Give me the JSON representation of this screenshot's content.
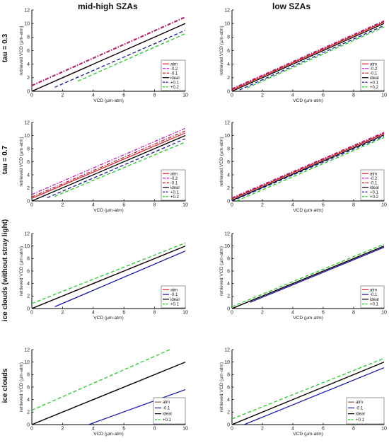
{
  "headers": {
    "left": "mid-high SZAs",
    "right": "low SZAs"
  },
  "row_labels": [
    "tau = 0.3",
    "tau = 0.7",
    "ice clouds (without stray light)",
    "ice clouds"
  ],
  "chart_data": [
    {
      "type": "line",
      "row": 0,
      "col": 0,
      "xlabel": "VCD (μm-atm)",
      "ylabel": "retrieved VCD (μm-atm)",
      "xlim": [
        0,
        10
      ],
      "ylim": [
        0,
        12
      ],
      "xticks": [
        0,
        2,
        4,
        6,
        8,
        10
      ],
      "yticks": [
        0,
        2,
        4,
        6,
        8,
        10,
        12
      ],
      "legend": "bottom-right",
      "series": [
        {
          "name": "atm",
          "color": "#e0232b",
          "dash": "solid",
          "x": [
            0,
            10
          ],
          "y": [
            0,
            10
          ]
        },
        {
          "name": "-0.2",
          "color": "#c020c0",
          "dash": "dashdot",
          "x": [
            0,
            10
          ],
          "y": [
            0.9,
            11.0
          ]
        },
        {
          "name": "-0.1",
          "color": "#b3202a",
          "dash": "dashdot",
          "x": [
            0,
            10
          ],
          "y": [
            0.8,
            10.9
          ]
        },
        {
          "name": "ideal",
          "color": "#000000",
          "dash": "solid",
          "x": [
            0,
            10
          ],
          "y": [
            0,
            10
          ]
        },
        {
          "name": "+0.1",
          "color": "#1a1aa0",
          "dash": "dashed",
          "x": [
            1.5,
            10
          ],
          "y": [
            0.6,
            9.0
          ]
        },
        {
          "name": "+0.2",
          "color": "#22cc22",
          "dash": "dashed",
          "x": [
            3.0,
            10
          ],
          "y": [
            1.5,
            8.5
          ]
        }
      ]
    },
    {
      "type": "line",
      "row": 0,
      "col": 1,
      "xlabel": "VCD (μm-atm)",
      "ylabel": "retrieved VCD (μm-atm)",
      "xlim": [
        0,
        10
      ],
      "ylim": [
        0,
        12
      ],
      "xticks": [
        0,
        2,
        4,
        6,
        8,
        10
      ],
      "yticks": [
        0,
        2,
        4,
        6,
        8,
        10,
        12
      ],
      "legend": "bottom-right",
      "series": [
        {
          "name": "atm",
          "color": "#e0232b",
          "dash": "solid",
          "x": [
            0,
            10
          ],
          "y": [
            0.2,
            10.2
          ]
        },
        {
          "name": "-0.2",
          "color": "#c020c0",
          "dash": "dashdot",
          "x": [
            0,
            10
          ],
          "y": [
            0.4,
            10.4
          ]
        },
        {
          "name": "-0.1",
          "color": "#b3202a",
          "dash": "dashdot",
          "x": [
            0,
            10
          ],
          "y": [
            0.3,
            10.3
          ]
        },
        {
          "name": "ideal",
          "color": "#000000",
          "dash": "solid",
          "x": [
            0,
            10
          ],
          "y": [
            0,
            10
          ]
        },
        {
          "name": "+0.1",
          "color": "#1a1aa0",
          "dash": "dashed",
          "x": [
            0.5,
            10
          ],
          "y": [
            0.2,
            9.7
          ]
        },
        {
          "name": "+0.2",
          "color": "#22cc22",
          "dash": "dashed",
          "x": [
            1.0,
            10
          ],
          "y": [
            0.5,
            9.5
          ]
        }
      ]
    },
    {
      "type": "line",
      "row": 1,
      "col": 0,
      "xlabel": "VCD (μm-atm)",
      "ylabel": "retrieved VCD (μm-atm)",
      "xlim": [
        0,
        10
      ],
      "ylim": [
        0,
        12
      ],
      "xticks": [
        0,
        2,
        4,
        6,
        8,
        10
      ],
      "yticks": [
        0,
        2,
        4,
        6,
        8,
        10,
        12
      ],
      "legend": "bottom-right",
      "series": [
        {
          "name": "atm",
          "color": "#e0232b",
          "dash": "solid",
          "x": [
            0,
            10
          ],
          "y": [
            0.4,
            10.4
          ]
        },
        {
          "name": "-0.2",
          "color": "#c020c0",
          "dash": "dashdot",
          "x": [
            0,
            10
          ],
          "y": [
            1.0,
            11.1
          ]
        },
        {
          "name": "-0.1",
          "color": "#b3202a",
          "dash": "dashdot",
          "x": [
            0,
            10
          ],
          "y": [
            0.6,
            10.7
          ]
        },
        {
          "name": "ideal",
          "color": "#000000",
          "dash": "solid",
          "x": [
            0,
            10
          ],
          "y": [
            0,
            10
          ]
        },
        {
          "name": "+0.1",
          "color": "#1a1aa0",
          "dash": "dashed",
          "x": [
            1.0,
            10
          ],
          "y": [
            0.5,
            9.5
          ]
        },
        {
          "name": "+0.2",
          "color": "#22cc22",
          "dash": "dashed",
          "x": [
            1.5,
            10
          ],
          "y": [
            0.7,
            9.0
          ]
        }
      ]
    },
    {
      "type": "line",
      "row": 1,
      "col": 1,
      "xlabel": "VCD (μm-atm)",
      "ylabel": "retrieved VCD (μm-atm)",
      "xlim": [
        0,
        10
      ],
      "ylim": [
        0,
        12
      ],
      "xticks": [
        0,
        2,
        4,
        6,
        8,
        10
      ],
      "yticks": [
        0,
        2,
        4,
        6,
        8,
        10,
        12
      ],
      "legend": "bottom-right",
      "series": [
        {
          "name": "atm",
          "color": "#e0232b",
          "dash": "solid",
          "x": [
            0,
            10
          ],
          "y": [
            0.3,
            10.3
          ]
        },
        {
          "name": "-0.2",
          "color": "#c020c0",
          "dash": "dashdot",
          "x": [
            0,
            10
          ],
          "y": [
            0.5,
            10.5
          ]
        },
        {
          "name": "-0.1",
          "color": "#b3202a",
          "dash": "dashdot",
          "x": [
            0,
            10
          ],
          "y": [
            0.4,
            10.4
          ]
        },
        {
          "name": "ideal",
          "color": "#000000",
          "dash": "solid",
          "x": [
            0,
            10
          ],
          "y": [
            0.1,
            10.1
          ]
        },
        {
          "name": "+0.1",
          "color": "#1a1aa0",
          "dash": "dashed",
          "x": [
            0,
            10
          ],
          "y": [
            0,
            9.9
          ]
        },
        {
          "name": "+0.2",
          "color": "#22cc22",
          "dash": "dashed",
          "x": [
            0.3,
            10
          ],
          "y": [
            0,
            9.7
          ]
        }
      ]
    },
    {
      "type": "line",
      "row": 2,
      "col": 0,
      "xlabel": "VCD (μm-atm)",
      "ylabel": "retrieved VCD (μm-atm)",
      "xlim": [
        0,
        10
      ],
      "ylim": [
        0,
        12
      ],
      "xticks": [
        0,
        2,
        4,
        6,
        8,
        10
      ],
      "yticks": [
        0,
        2,
        4,
        6,
        8,
        10,
        12
      ],
      "legend": "bottom-right",
      "series": [
        {
          "name": "atm",
          "color": "#e0232b",
          "dash": "solid",
          "x": [
            0,
            10
          ],
          "y": [
            0,
            10
          ]
        },
        {
          "name": "-0.1",
          "color": "#1a1ab0",
          "dash": "solid",
          "x": [
            1.5,
            10
          ],
          "y": [
            0.3,
            9.2
          ]
        },
        {
          "name": "ideal",
          "color": "#000000",
          "dash": "solid",
          "x": [
            0,
            10
          ],
          "y": [
            0,
            10
          ]
        },
        {
          "name": "+0.1",
          "color": "#22cc22",
          "dash": "dashed",
          "x": [
            0,
            10
          ],
          "y": [
            0.8,
            10.5
          ]
        }
      ]
    },
    {
      "type": "line",
      "row": 2,
      "col": 1,
      "xlabel": "VCD (μm-atm)",
      "ylabel": "retrieved VCD (μm-atm)",
      "xlim": [
        0,
        10
      ],
      "ylim": [
        0,
        12
      ],
      "xticks": [
        0,
        2,
        4,
        6,
        8,
        10
      ],
      "yticks": [
        0,
        2,
        4,
        6,
        8,
        10,
        12
      ],
      "legend": "bottom-right",
      "series": [
        {
          "name": "atm",
          "color": "#e0232b",
          "dash": "solid",
          "x": [
            0,
            10
          ],
          "y": [
            0,
            10
          ]
        },
        {
          "name": "-0.1",
          "color": "#1a1ab0",
          "dash": "solid",
          "x": [
            1.2,
            10
          ],
          "y": [
            1.0,
            9.8
          ]
        },
        {
          "name": "ideal",
          "color": "#000000",
          "dash": "solid",
          "x": [
            0,
            10
          ],
          "y": [
            0,
            10
          ]
        },
        {
          "name": "+0.1",
          "color": "#22cc22",
          "dash": "dashed",
          "x": [
            0,
            10
          ],
          "y": [
            0.3,
            10.3
          ]
        }
      ]
    },
    {
      "type": "line",
      "row": 3,
      "col": 0,
      "xlabel": "VCD (μm-atm)",
      "ylabel": "retrieved VCD (μm-atm)",
      "xlim": [
        0,
        10
      ],
      "ylim": [
        0,
        12
      ],
      "xticks": [
        0,
        2,
        4,
        6,
        8,
        10
      ],
      "yticks": [
        0,
        2,
        4,
        6,
        8,
        10,
        12
      ],
      "legend": "bottom-right",
      "series": [
        {
          "name": "atm",
          "color": "#a0522d",
          "dash": "solid",
          "x": [
            0,
            10
          ],
          "y": [
            0,
            10
          ]
        },
        {
          "name": "-0.1",
          "color": "#1a1ab0",
          "dash": "solid",
          "x": [
            3.7,
            10
          ],
          "y": [
            0,
            5.6
          ]
        },
        {
          "name": "ideal",
          "color": "#000000",
          "dash": "solid",
          "x": [
            0,
            10
          ],
          "y": [
            0,
            10
          ]
        },
        {
          "name": "+0.1",
          "color": "#22cc22",
          "dash": "dashed",
          "x": [
            0,
            9
          ],
          "y": [
            2.3,
            12
          ]
        }
      ]
    },
    {
      "type": "line",
      "row": 3,
      "col": 1,
      "xlabel": "VCD (μm-atm)",
      "ylabel": "retrieved VCD (μm-atm)",
      "xlim": [
        0,
        10
      ],
      "ylim": [
        0,
        12
      ],
      "xticks": [
        0,
        2,
        4,
        6,
        8,
        10
      ],
      "yticks": [
        0,
        2,
        4,
        6,
        8,
        10,
        12
      ],
      "legend": "bottom-right",
      "series": [
        {
          "name": "atm",
          "color": "#a0522d",
          "dash": "solid",
          "x": [
            0,
            10
          ],
          "y": [
            0,
            10
          ]
        },
        {
          "name": "-0.1",
          "color": "#1a1ab0",
          "dash": "solid",
          "x": [
            0.8,
            10
          ],
          "y": [
            0,
            9.1
          ]
        },
        {
          "name": "ideal",
          "color": "#000000",
          "dash": "solid",
          "x": [
            0,
            10
          ],
          "y": [
            0,
            10
          ]
        },
        {
          "name": "+0.1",
          "color": "#22cc22",
          "dash": "dashed",
          "x": [
            0,
            10
          ],
          "y": [
            0.9,
            10.6
          ]
        }
      ]
    }
  ]
}
